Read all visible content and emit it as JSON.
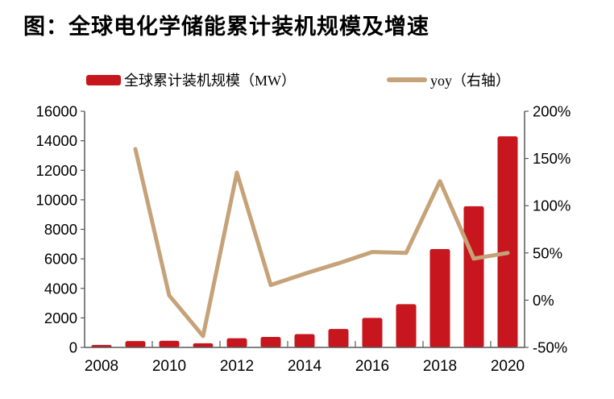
{
  "title": "图：全球电化学储能累计装机规模及增速",
  "legend": {
    "items": [
      {
        "label": "全球累计装机规模（MW）",
        "swatch": "bar",
        "color": "#c7161e"
      },
      {
        "label": "yoy（右轴）",
        "swatch": "line",
        "color": "#c6a278"
      }
    ]
  },
  "colors": {
    "bar": "#c7161e",
    "line": "#c6a278",
    "axis": "#595959",
    "text": "#000000"
  },
  "chart_data": {
    "type": "bar",
    "title": "图：全球电化学储能累计装机规模及增速",
    "categories": [
      "2008",
      "2009",
      "2010",
      "2011",
      "2012",
      "2013",
      "2014",
      "2015",
      "2016",
      "2017",
      "2018",
      "2019",
      "2020"
    ],
    "x_tick_labels": [
      "2008",
      "2010",
      "2012",
      "2014",
      "2016",
      "2018",
      "2020"
    ],
    "series": [
      {
        "name": "全球累计装机规模（MW）",
        "type": "bar",
        "axis": "left",
        "color": "#c7161e",
        "values": [
          170,
          430,
          450,
          280,
          620,
          710,
          900,
          1250,
          2000,
          2930,
          6660,
          9560,
          14300
        ]
      },
      {
        "name": "yoy（右轴）",
        "type": "line",
        "axis": "right",
        "color": "#c6a278",
        "values": [
          null,
          160,
          5,
          -38,
          135,
          16,
          28,
          39,
          51,
          50,
          126,
          44,
          50
        ]
      }
    ],
    "left_axis": {
      "min": 0,
      "max": 16000,
      "step": 2000,
      "tick_labels": [
        "0",
        "2000",
        "4000",
        "6000",
        "8000",
        "10000",
        "12000",
        "14000",
        "16000"
      ]
    },
    "right_axis": {
      "min": -50,
      "max": 200,
      "step": 50,
      "unit": "%",
      "tick_labels": [
        "-50%",
        "0%",
        "50%",
        "100%",
        "150%",
        "200%"
      ]
    },
    "grid": false,
    "legend_position": "top"
  }
}
